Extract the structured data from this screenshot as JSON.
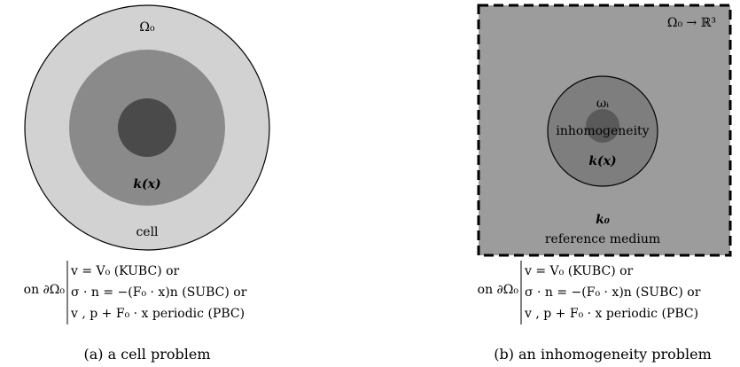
{
  "panel_a": {
    "outer_label": "Ω₀",
    "inner_label": "k(x)",
    "bottom_label": "cell",
    "bc_prefix": "on ∂Ω₀",
    "bc_lines": [
      "v = V₀ (KUBC) or",
      "σ · n = −(F₀ · x)n (SUBC) or",
      "v , p + F₀ · x periodic (PBC)"
    ],
    "caption": "(a) a cell problem"
  },
  "panel_b": {
    "domain_label": "Ω₀ → ℝ³",
    "omega_label": "ωᵢ",
    "inhomogeneity_label": "inhomogeneity",
    "inner_label": "k(x)",
    "k0_label": "k₀",
    "reference_label": "reference medium",
    "bc_prefix": "on ∂Ω₀",
    "bc_lines": [
      "v = V₀ (KUBC) or",
      "σ · n = −(F₀ · x)n (SUBC) or",
      "v , p + F₀ · x periodic (PBC)"
    ],
    "caption": "(b) an inhomogeneity problem"
  },
  "colors": {
    "outer_light": "#d2d2d2",
    "mid_gray": "#8a8a8a",
    "dark": "#4a4a4a",
    "square": "#9c9c9c",
    "inclusion": "#7e7e7e"
  }
}
